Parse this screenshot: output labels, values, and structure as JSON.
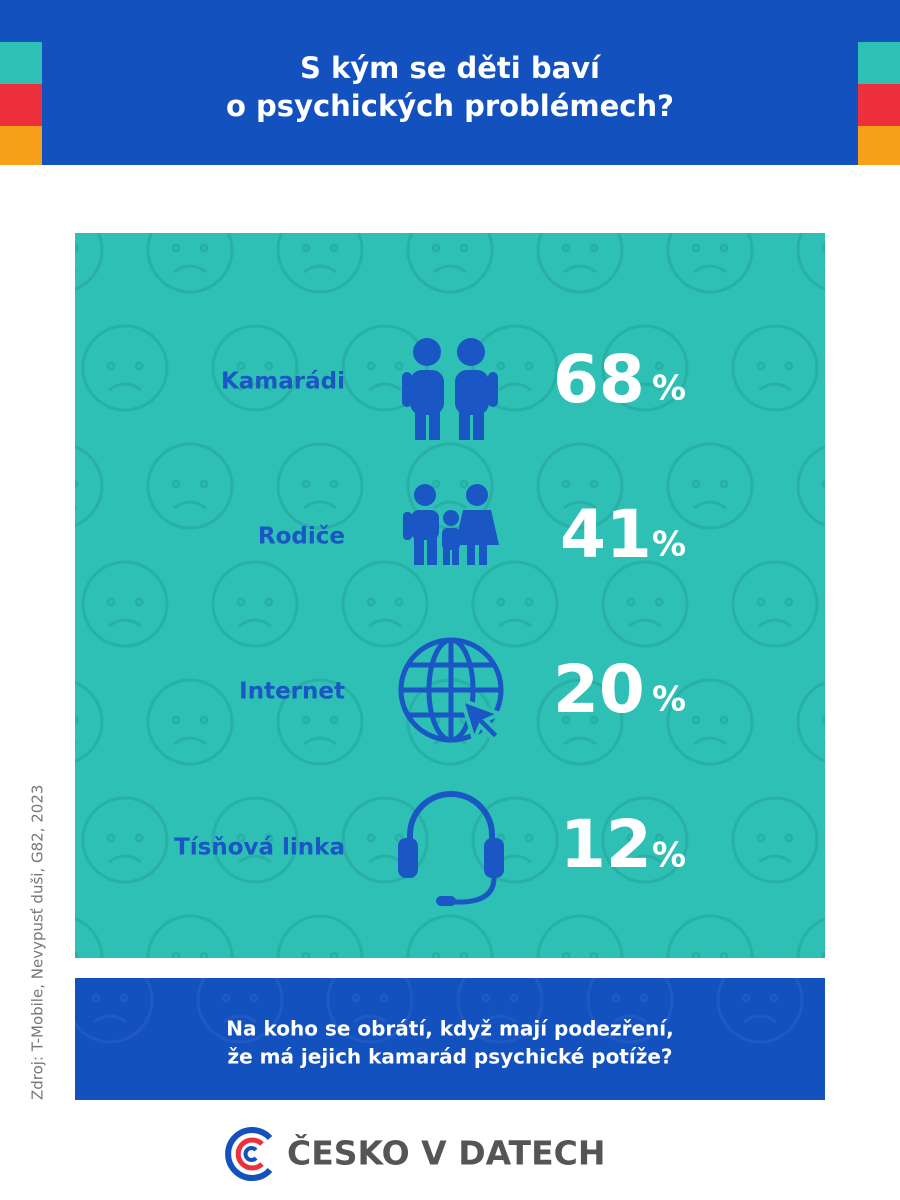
{
  "header": {
    "title_lines": [
      "S kým se děti baví",
      "o psychických problémech?"
    ]
  },
  "items": [
    {
      "label": "Kamarádi",
      "value": 68
    },
    {
      "label": "Rodiče",
      "value": 41
    },
    {
      "label": "Internet",
      "value": 20
    },
    {
      "label": "Tísňová linka",
      "value": 12
    }
  ],
  "unit": "%",
  "question": {
    "lines": [
      "Na koho se obrátí, když mají podezření,",
      "že má jejich kamarád psychické potíže?"
    ]
  },
  "source": "Zdroj: T-Mobile, Nevypusť duši, G82, 2023",
  "logo": "ČESKO V DATECH"
}
